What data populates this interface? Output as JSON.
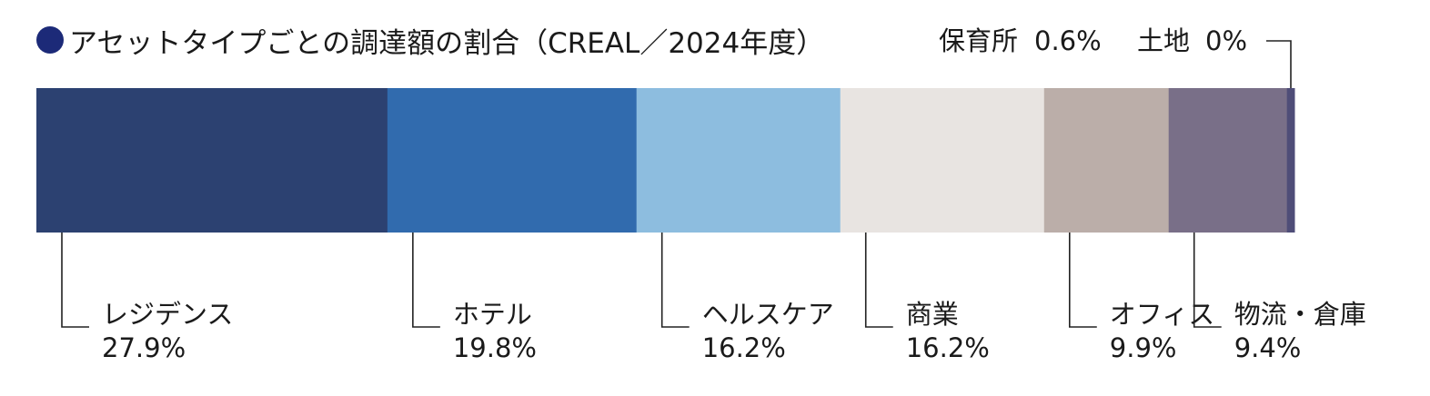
{
  "chart_data": {
    "type": "bar",
    "orientation": "horizontal-stacked-100",
    "title": "アセットタイプごとの調達額の割合（CREAL／2024年度）",
    "segments": [
      {
        "label": "レジデンス",
        "value": 27.9,
        "value_text": "27.9%",
        "color": "#2c4171"
      },
      {
        "label": "ホテル",
        "value": 19.8,
        "value_text": "19.8%",
        "color": "#316bae"
      },
      {
        "label": "ヘルスケア",
        "value": 16.2,
        "value_text": "16.2%",
        "color": "#8dbddf"
      },
      {
        "label": "商業",
        "value": 16.2,
        "value_text": "16.2%",
        "color": "#e8e4e1"
      },
      {
        "label": "オフィス",
        "value": 9.9,
        "value_text": "9.9%",
        "color": "#bbaea9"
      },
      {
        "label": "物流・倉庫",
        "value": 9.4,
        "value_text": "9.4%",
        "color": "#796f88"
      },
      {
        "label": "保育所",
        "value": 0.6,
        "value_text": "0.6%",
        "color": "#4f4d78"
      },
      {
        "label": "土地",
        "value": 0,
        "value_text": "0%",
        "color": "#4f4d78"
      }
    ],
    "total": 100,
    "legend": "none"
  }
}
